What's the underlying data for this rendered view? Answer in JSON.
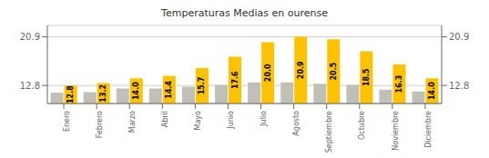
{
  "chart_data": {
    "type": "bar",
    "title": "Temperaturas Medias en ourense",
    "categories": [
      "Enero",
      "Febrero",
      "Marzo",
      "Abril",
      "Mayo",
      "Junio",
      "Julio",
      "Agosto",
      "Septiembre",
      "Octubre",
      "Noviembre",
      "Diciembre"
    ],
    "series": [
      {
        "color": "#C0BFB8",
        "values": [
          11.6,
          11.7,
          12.3,
          12.3,
          12.6,
          12.9,
          13.3,
          13.3,
          13.1,
          12.9,
          12.1,
          11.8
        ]
      },
      {
        "color": "#FFC200",
        "values": [
          12.8,
          13.2,
          14.0,
          14.4,
          15.7,
          17.6,
          20.0,
          20.9,
          20.5,
          18.5,
          16.3,
          14.0
        ],
        "data_labels": true,
        "value_labels": [
          "12.8",
          "13.2",
          "14.0",
          "14.4",
          "15.7",
          "17.6",
          "20.0",
          "20.9",
          "20.5",
          "18.5",
          "16.3",
          "14.0"
        ]
      }
    ],
    "ylim": [
      9.8,
      22.8
    ],
    "yticks": [
      12.8,
      20.9
    ],
    "y2lim": [
      9.8,
      22.8
    ],
    "y2ticks": [
      12.8,
      20.9
    ],
    "grid": true
  }
}
